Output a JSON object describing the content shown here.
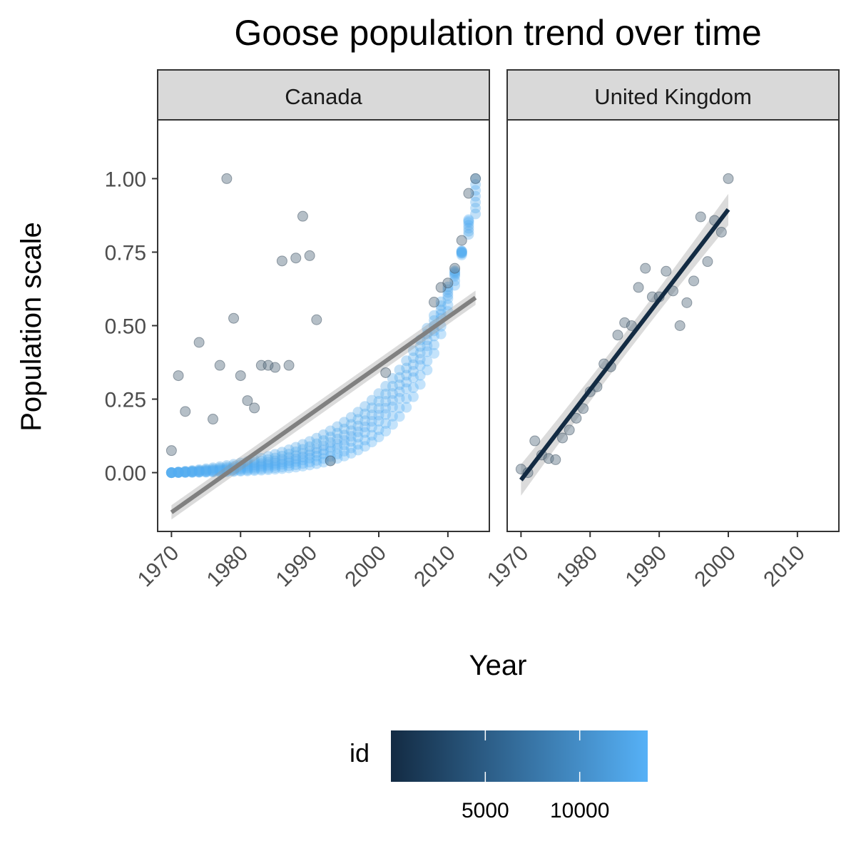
{
  "chart_data": {
    "type": "scatter",
    "title": "Goose population trend over time",
    "xlabel": "Year",
    "ylabel": "Population scale",
    "x_ticks": [
      1970,
      1980,
      1990,
      2000,
      2010
    ],
    "y_ticks": [
      "0.00",
      "0.25",
      "0.50",
      "0.75",
      "1.00"
    ],
    "xlim": [
      1968,
      2016
    ],
    "ylim": [
      -0.2,
      1.2
    ],
    "grid": false,
    "legend": {
      "title": "id",
      "type": "colorbar",
      "placement": "bottom",
      "labels": [
        "5000",
        "10000"
      ],
      "range": [
        1,
        13600
      ],
      "low_color": "#132B43",
      "high_color": "#56B1F7"
    },
    "panels": [
      {
        "name": "Canada",
        "trend_color": "#808080",
        "trend_line": {
          "x": [
            1970,
            2014
          ],
          "y": [
            -0.135,
            0.595
          ]
        },
        "outlier_points": [
          {
            "x": 1970,
            "y": 0.075
          },
          {
            "x": 1971,
            "y": 0.33
          },
          {
            "x": 1972,
            "y": 0.208
          },
          {
            "x": 1974,
            "y": 0.443
          },
          {
            "x": 1976,
            "y": 0.182
          },
          {
            "x": 1977,
            "y": 0.365
          },
          {
            "x": 1978,
            "y": 1.0
          },
          {
            "x": 1979,
            "y": 0.525
          },
          {
            "x": 1980,
            "y": 0.33
          },
          {
            "x": 1981,
            "y": 0.245
          },
          {
            "x": 1982,
            "y": 0.22
          },
          {
            "x": 1983,
            "y": 0.365
          },
          {
            "x": 1984,
            "y": 0.365
          },
          {
            "x": 1985,
            "y": 0.358
          },
          {
            "x": 1986,
            "y": 0.72
          },
          {
            "x": 1987,
            "y": 0.365
          },
          {
            "x": 1988,
            "y": 0.73
          },
          {
            "x": 1989,
            "y": 0.872
          },
          {
            "x": 1990,
            "y": 0.738
          },
          {
            "x": 1991,
            "y": 0.52
          },
          {
            "x": 1993,
            "y": 0.04
          },
          {
            "x": 2001,
            "y": 0.34
          },
          {
            "x": 2008,
            "y": 0.58
          },
          {
            "x": 2009,
            "y": 0.63
          },
          {
            "x": 2010,
            "y": 0.645
          },
          {
            "x": 2011,
            "y": 0.695
          },
          {
            "x": 2012,
            "y": 0.79
          },
          {
            "x": 2013,
            "y": 0.95
          },
          {
            "x": 2014,
            "y": 1.0
          }
        ],
        "series_growth_rates": [
          0.08,
          0.09,
          0.1,
          0.11,
          0.12,
          0.135,
          0.15
        ],
        "series_base": [
          0.02,
          0.035,
          0.05,
          0.07,
          0.09,
          0.13,
          0.18
        ],
        "series_year_range": [
          1970,
          2014
        ]
      },
      {
        "name": "United Kingdom",
        "trend_color": "#132B43",
        "trend_line": {
          "x": [
            1970,
            2000
          ],
          "y": [
            -0.025,
            0.895
          ]
        },
        "points": [
          {
            "x": 1970,
            "y": 0.012
          },
          {
            "x": 1971,
            "y": 0.0
          },
          {
            "x": 1972,
            "y": 0.108
          },
          {
            "x": 1973,
            "y": 0.06
          },
          {
            "x": 1974,
            "y": 0.048
          },
          {
            "x": 1975,
            "y": 0.044
          },
          {
            "x": 1976,
            "y": 0.118
          },
          {
            "x": 1977,
            "y": 0.145
          },
          {
            "x": 1978,
            "y": 0.185
          },
          {
            "x": 1979,
            "y": 0.218
          },
          {
            "x": 1980,
            "y": 0.275
          },
          {
            "x": 1981,
            "y": 0.292
          },
          {
            "x": 1982,
            "y": 0.37
          },
          {
            "x": 1983,
            "y": 0.36
          },
          {
            "x": 1984,
            "y": 0.468
          },
          {
            "x": 1985,
            "y": 0.51
          },
          {
            "x": 1986,
            "y": 0.5
          },
          {
            "x": 1987,
            "y": 0.63
          },
          {
            "x": 1988,
            "y": 0.695
          },
          {
            "x": 1989,
            "y": 0.598
          },
          {
            "x": 1990,
            "y": 0.598
          },
          {
            "x": 1991,
            "y": 0.685
          },
          {
            "x": 1992,
            "y": 0.618
          },
          {
            "x": 1993,
            "y": 0.5
          },
          {
            "x": 1994,
            "y": 0.578
          },
          {
            "x": 1995,
            "y": 0.652
          },
          {
            "x": 1996,
            "y": 0.87
          },
          {
            "x": 1997,
            "y": 0.718
          },
          {
            "x": 1998,
            "y": 0.858
          },
          {
            "x": 1999,
            "y": 0.818
          },
          {
            "x": 2000,
            "y": 1.0
          }
        ]
      }
    ]
  }
}
